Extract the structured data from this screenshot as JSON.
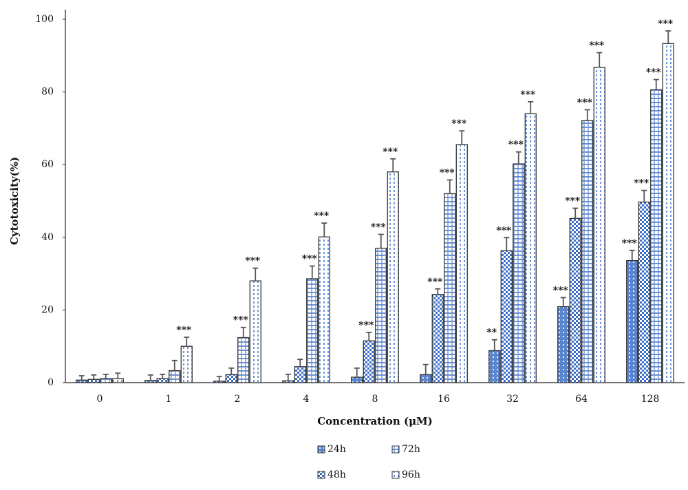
{
  "chart_data": {
    "type": "bar",
    "x_label": "Concentration (μM)",
    "y_label": "Cytotoxicity(%)",
    "categories": [
      "0",
      "1",
      "2",
      "4",
      "8",
      "16",
      "32",
      "64",
      "128"
    ],
    "ylim": [
      0,
      100
    ],
    "yticks": [
      0,
      20,
      40,
      60,
      80,
      100
    ],
    "grid": false,
    "series": [
      {
        "name": "24h",
        "color": "#3d6fc6",
        "pattern": "dots",
        "values": [
          0.7,
          0.6,
          0.4,
          0.5,
          1.5,
          2.2,
          8.8,
          20.9,
          33.6
        ],
        "errors": [
          1.2,
          1.5,
          1.3,
          1.8,
          2.5,
          2.8,
          3,
          2.5,
          2.8
        ],
        "significance": [
          null,
          null,
          null,
          null,
          null,
          null,
          "**",
          "***",
          "***"
        ]
      },
      {
        "name": "48h",
        "color": "#3d6fc6",
        "pattern": "checker",
        "values": [
          0.9,
          1.1,
          2.2,
          4.4,
          11.5,
          24.3,
          36.3,
          45.2,
          49.7
        ],
        "errors": [
          1.2,
          1.2,
          1.8,
          2,
          2.3,
          1.5,
          3.6,
          2.8,
          3.2
        ],
        "significance": [
          null,
          null,
          null,
          null,
          "***",
          "***",
          "***",
          "***",
          "***"
        ]
      },
      {
        "name": "72h",
        "color": "#3d6fc6",
        "pattern": "brick",
        "values": [
          1.1,
          3.3,
          12.4,
          28.6,
          37,
          52,
          60.2,
          72.1,
          80.6
        ],
        "errors": [
          1.2,
          2.8,
          2.8,
          3.5,
          3.8,
          3.8,
          3.3,
          3,
          2.8
        ],
        "significance": [
          null,
          null,
          "***",
          "***",
          "***",
          "***",
          "***",
          "***",
          "***"
        ]
      },
      {
        "name": "96h",
        "color": "#3d6fc6",
        "pattern": "dashes",
        "values": [
          1.1,
          10,
          28,
          40.1,
          58,
          65.5,
          74,
          86.8,
          93.3
        ],
        "errors": [
          1.5,
          2.5,
          3.5,
          3.8,
          3.6,
          3.8,
          3.3,
          4,
          3.5
        ],
        "significance": [
          null,
          "***",
          "***",
          "***",
          "***",
          "***",
          "***",
          "***",
          "***"
        ]
      }
    ]
  }
}
